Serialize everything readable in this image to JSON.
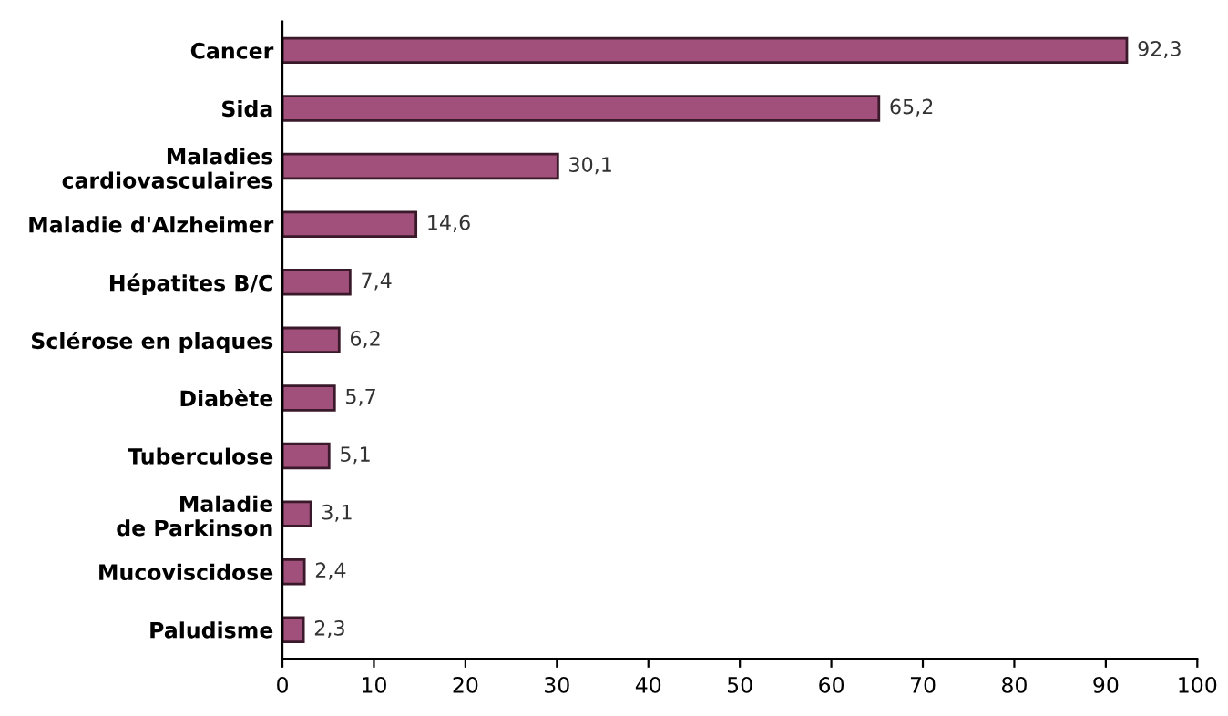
{
  "chart_data": {
    "type": "bar",
    "orientation": "horizontal",
    "categories": [
      "Cancer",
      "Sida",
      "Maladies\ncardiovasculaires",
      "Maladie d'Alzheimer",
      "Hépatites B/C",
      "Sclérose en plaques",
      "Diabète",
      "Tuberculose",
      "Maladie\nde Parkinson",
      "Mucoviscidose",
      "Paludisme"
    ],
    "values": [
      92.3,
      65.2,
      30.1,
      14.6,
      7.4,
      6.2,
      5.7,
      5.1,
      3.1,
      2.4,
      2.3
    ],
    "value_labels": [
      "92,3",
      "65,2",
      "30,1",
      "14,6",
      "7,4",
      "6,2",
      "5,7",
      "5,1",
      "3,1",
      "2,4",
      "2,3"
    ],
    "color": "#a0507a",
    "xlim": [
      0,
      100
    ],
    "xticks": [
      0,
      10,
      20,
      30,
      40,
      50,
      60,
      70,
      80,
      90,
      100
    ],
    "grid": false
  }
}
